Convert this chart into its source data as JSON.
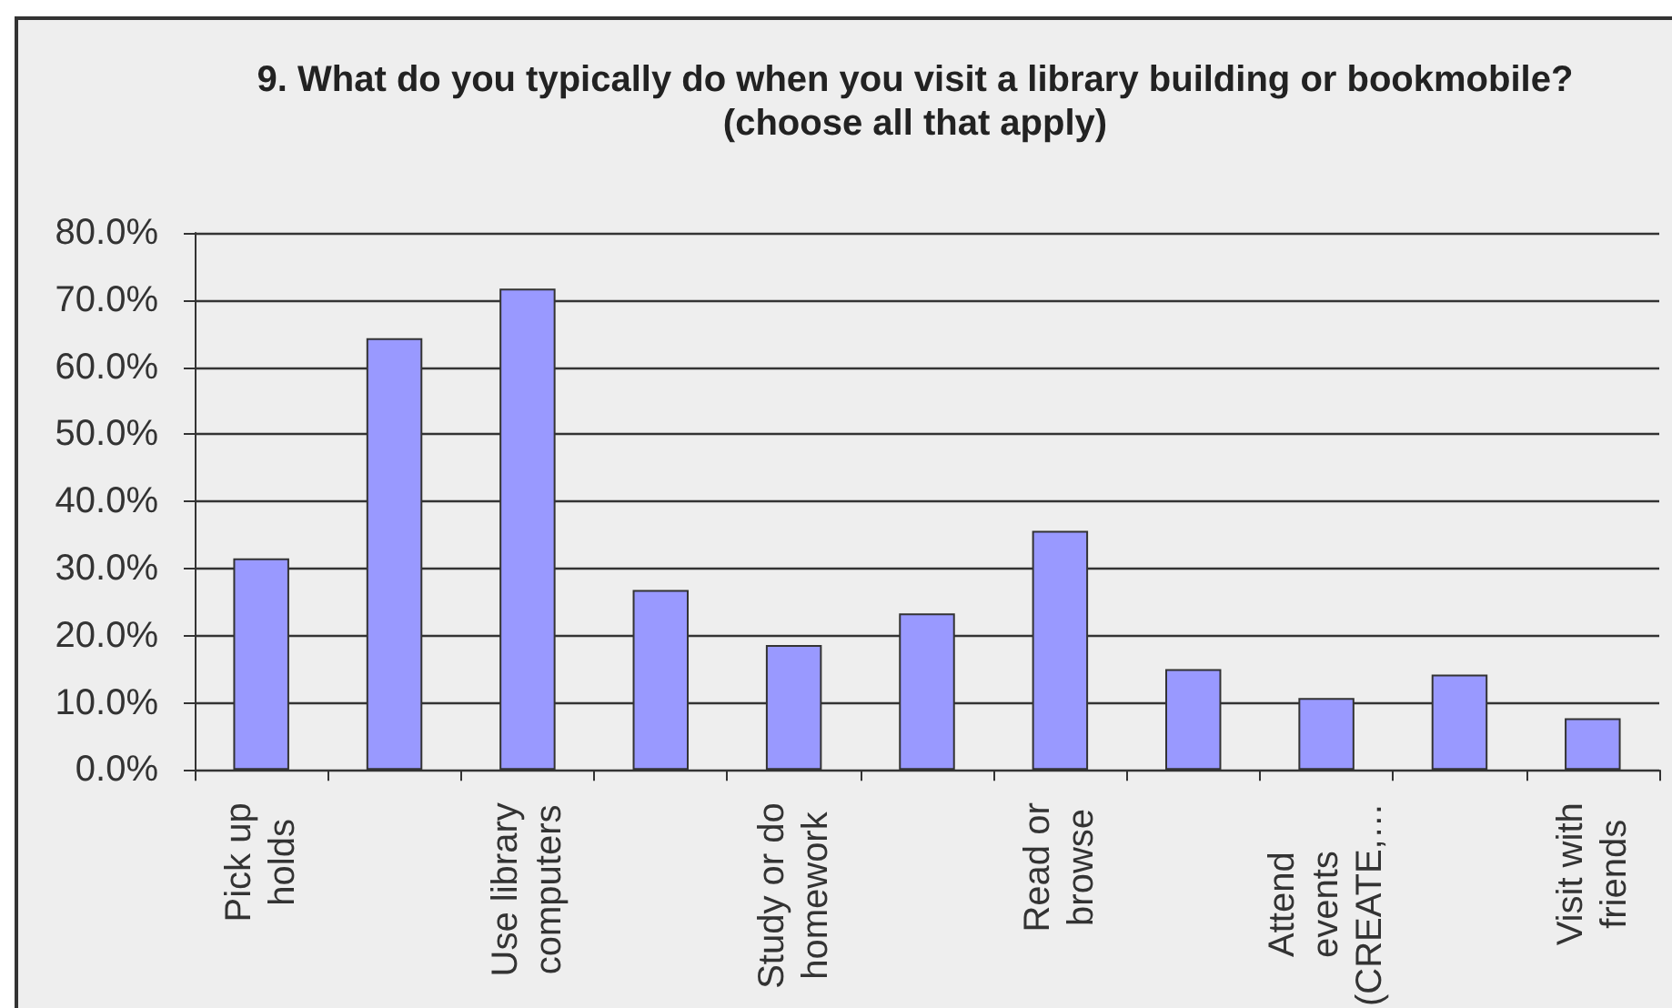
{
  "chart_data": {
    "type": "bar",
    "title": "9. What do you typically do when you visit a library building or bookmobile? (choose all that apply)",
    "categories": [
      "Pick up holds",
      null,
      "Use library computers",
      null,
      "Study or do homework",
      null,
      "Read or browse",
      null,
      "Attend events (CREATE,…",
      null,
      "Visit with friends"
    ],
    "values": [
      31.5,
      64.3,
      71.7,
      26.8,
      18.6,
      23.3,
      35.6,
      15.0,
      10.7,
      14.2,
      7.7
    ],
    "color": "#9999ff",
    "ylim": [
      0,
      80
    ],
    "yticks": [
      {
        "value": 0,
        "label": "0.0%"
      },
      {
        "value": 10,
        "label": "10.0%"
      },
      {
        "value": 20,
        "label": "20.0%"
      },
      {
        "value": 30,
        "label": "30.0%"
      },
      {
        "value": 40,
        "label": "40.0%"
      },
      {
        "value": 50,
        "label": "50.0%"
      },
      {
        "value": 60,
        "label": "60.0%"
      },
      {
        "value": 70,
        "label": "70.0%"
      },
      {
        "value": 80,
        "label": "80.0%"
      }
    ],
    "grid": "y"
  }
}
